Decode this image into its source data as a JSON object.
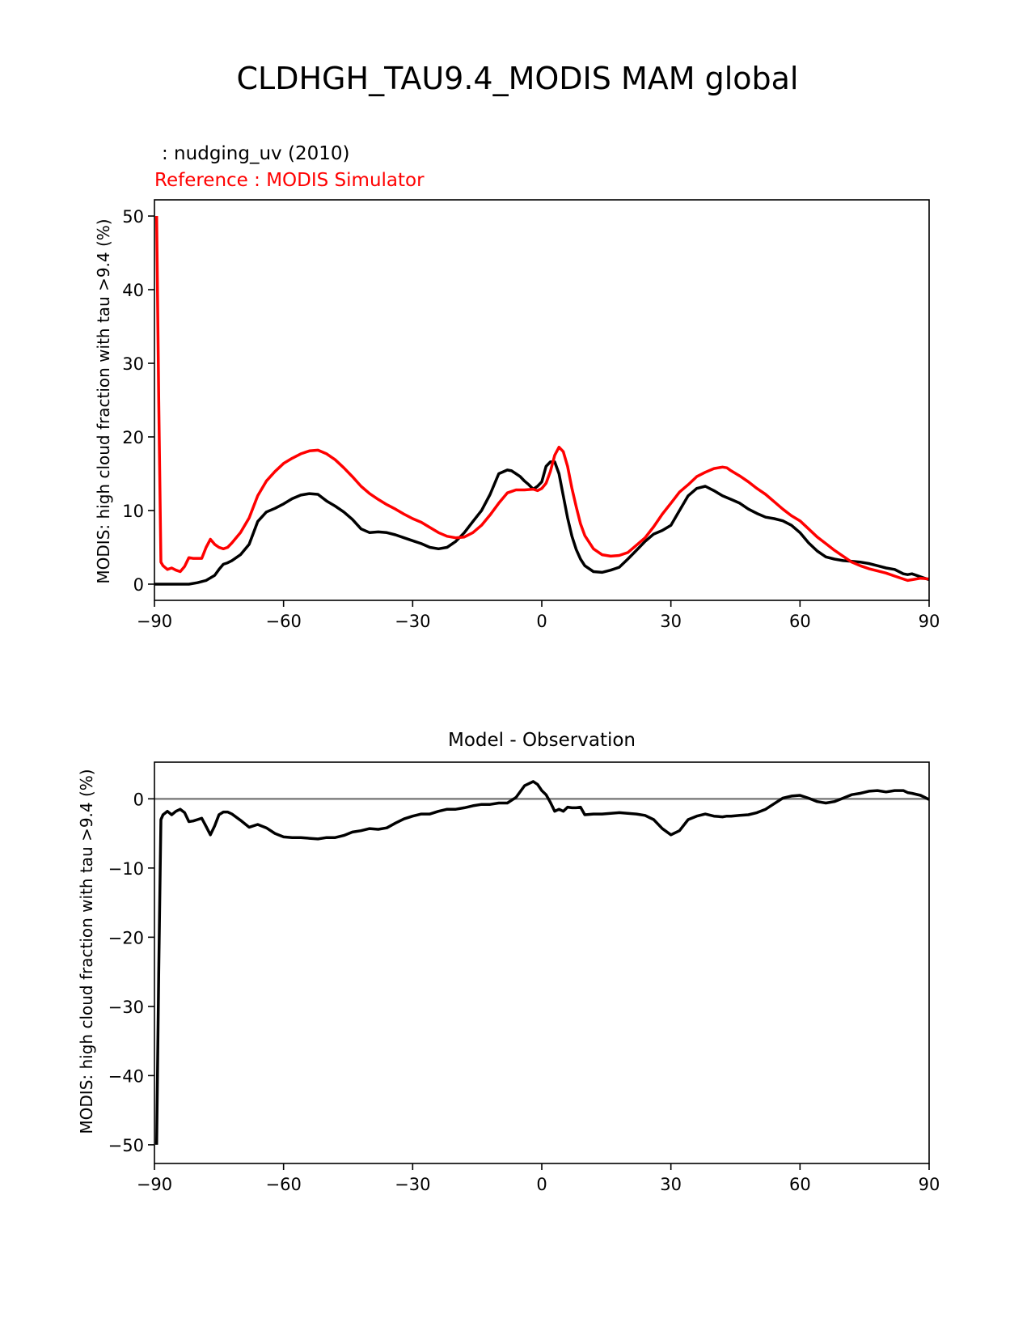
{
  "figure_title": "CLDHGH_TAU9.4_MODIS MAM global",
  "colors": {
    "model": "#000000",
    "reference": "#ff0000",
    "zero_line": "#808080"
  },
  "chart_data": [
    {
      "type": "line",
      "test_label": " : nudging_uv (2010)",
      "ref_label": "Reference : MODIS Simulator",
      "title": "",
      "xlabel": "",
      "ylabel": "MODIS: high cloud fraction with tau >9.4 (%)",
      "xlim": [
        -90,
        90
      ],
      "ylim": [
        -2.2,
        52.2
      ],
      "xticks": [
        -90,
        -60,
        -30,
        0,
        30,
        60,
        90
      ],
      "xtick_labels": [
        "−90",
        "−60",
        "−30",
        "0",
        "30",
        "60",
        "90"
      ],
      "yticks": [
        0,
        10,
        20,
        30,
        40,
        50
      ],
      "ytick_labels": [
        "0",
        "10",
        "20",
        "30",
        "40",
        "50"
      ],
      "series": [
        {
          "name": "nudging_uv (2010)",
          "color": "#000000",
          "x": [
            -90,
            -87,
            -84,
            -82,
            -80,
            -78,
            -76,
            -75,
            -74,
            -73,
            -72,
            -70,
            -68,
            -66,
            -64,
            -62,
            -60,
            -58,
            -56,
            -54,
            -52,
            -50,
            -48,
            -46,
            -44,
            -42,
            -40,
            -38,
            -36,
            -34,
            -32,
            -30,
            -28,
            -26,
            -24,
            -22,
            -20,
            -18,
            -16,
            -14,
            -12,
            -10,
            -8,
            -7,
            -6,
            -5,
            -4,
            -3,
            -2,
            -1,
            0,
            1,
            2,
            3,
            4,
            5,
            6,
            7,
            8,
            9,
            10,
            12,
            14,
            16,
            18,
            20,
            22,
            24,
            26,
            28,
            30,
            32,
            34,
            36,
            38,
            40,
            42,
            44,
            46,
            48,
            50,
            52,
            54,
            56,
            58,
            60,
            62,
            64,
            66,
            68,
            70,
            72,
            74,
            76,
            78,
            80,
            82,
            84,
            85,
            86,
            88,
            90
          ],
          "values": [
            0,
            0,
            0,
            0,
            0.2,
            0.5,
            1.2,
            2,
            2.7,
            2.9,
            3.2,
            4,
            5.4,
            8.5,
            9.8,
            10.3,
            10.9,
            11.6,
            12.1,
            12.3,
            12.2,
            11.3,
            10.6,
            9.8,
            8.8,
            7.5,
            7,
            7.1,
            7,
            6.7,
            6.3,
            5.9,
            5.5,
            5,
            4.8,
            5,
            5.8,
            7,
            8.5,
            10,
            12.2,
            15,
            15.5,
            15.4,
            15,
            14.6,
            14,
            13.5,
            12.9,
            13.3,
            13.9,
            16,
            16.6,
            16.6,
            15,
            12,
            9,
            6.5,
            4.7,
            3.4,
            2.5,
            1.7,
            1.6,
            1.9,
            2.3,
            3.4,
            4.6,
            5.8,
            6.8,
            7.3,
            8,
            10,
            12,
            13,
            13.3,
            12.7,
            12,
            11.5,
            11,
            10.2,
            9.6,
            9.1,
            8.9,
            8.6,
            8,
            7,
            5.6,
            4.5,
            3.7,
            3.4,
            3.2,
            3.1,
            3,
            2.8,
            2.5,
            2.2,
            2,
            1.4,
            1.3,
            1.4,
            1,
            0.6
          ]
        },
        {
          "name": "MODIS Simulator",
          "color": "#ff0000",
          "x": [
            -89.5,
            -89,
            -88.5,
            -88,
            -87,
            -86,
            -85,
            -84,
            -83,
            -82,
            -81,
            -80,
            -79,
            -78,
            -77,
            -76,
            -75,
            -74,
            -73,
            -72,
            -70,
            -68,
            -66,
            -64,
            -62,
            -60,
            -58,
            -56,
            -54,
            -52,
            -50,
            -48,
            -46,
            -44,
            -42,
            -40,
            -38,
            -36,
            -34,
            -32,
            -30,
            -28,
            -26,
            -24,
            -22,
            -20,
            -18,
            -16,
            -14,
            -12,
            -10,
            -8,
            -6,
            -4,
            -2,
            -1,
            0,
            1,
            2,
            3,
            4,
            5,
            6,
            7,
            8,
            9,
            10,
            12,
            14,
            16,
            18,
            20,
            22,
            24,
            26,
            28,
            30,
            32,
            34,
            36,
            38,
            40,
            42,
            43,
            44,
            46,
            48,
            50,
            52,
            54,
            56,
            58,
            60,
            62,
            64,
            66,
            68,
            70,
            72,
            74,
            76,
            78,
            80,
            82,
            84,
            85,
            86,
            88,
            90
          ],
          "values": [
            50,
            25,
            3,
            2.5,
            2,
            2.2,
            1.9,
            1.7,
            2.4,
            3.6,
            3.5,
            3.5,
            3.5,
            5,
            6.1,
            5.4,
            5,
            4.8,
            5,
            5.6,
            7,
            9,
            12,
            14,
            15.3,
            16.4,
            17.1,
            17.7,
            18.1,
            18.2,
            17.7,
            16.9,
            15.8,
            14.6,
            13.3,
            12.3,
            11.5,
            10.8,
            10.2,
            9.5,
            8.9,
            8.4,
            7.7,
            7,
            6.5,
            6.3,
            6.4,
            7,
            8,
            9.4,
            11,
            12.4,
            12.8,
            12.8,
            12.9,
            12.7,
            13,
            13.7,
            15.3,
            17.5,
            18.6,
            18,
            16,
            13,
            10.5,
            8.2,
            6.6,
            4.8,
            4,
            3.8,
            3.9,
            4.3,
            5.3,
            6.3,
            7.8,
            9.5,
            11,
            12.5,
            13.5,
            14.6,
            15.2,
            15.7,
            15.9,
            15.8,
            15.4,
            14.7,
            13.9,
            13,
            12.2,
            11.2,
            10.2,
            9.3,
            8.6,
            7.5,
            6.4,
            5.5,
            4.6,
            3.8,
            3,
            2.5,
            2.1,
            1.8,
            1.5,
            1.1,
            0.7,
            0.5,
            0.6,
            0.8,
            0.7
          ]
        }
      ]
    },
    {
      "type": "line",
      "title": "Model - Observation",
      "xlabel": "",
      "ylabel": "MODIS: high cloud fraction with tau >9.4 (%)",
      "xlim": [
        -90,
        90
      ],
      "ylim": [
        -52.7,
        5.3
      ],
      "xticks": [
        -90,
        -60,
        -30,
        0,
        30,
        60,
        90
      ],
      "xtick_labels": [
        "−90",
        "−60",
        "−30",
        "0",
        "30",
        "60",
        "90"
      ],
      "yticks": [
        0,
        -10,
        -20,
        -30,
        -40,
        -50
      ],
      "ytick_labels": [
        "0",
        "−10",
        "−20",
        "−30",
        "−40",
        "−50"
      ],
      "reference_line": 0,
      "series": [
        {
          "name": "Model - Observation",
          "color": "#000000",
          "x": [
            -89.5,
            -89,
            -88.5,
            -88,
            -87,
            -86,
            -85,
            -84,
            -83,
            -82,
            -81,
            -80,
            -79,
            -78,
            -77,
            -76,
            -75,
            -74,
            -73,
            -72,
            -70,
            -68,
            -66,
            -64,
            -62,
            -60,
            -58,
            -56,
            -54,
            -52,
            -50,
            -48,
            -46,
            -44,
            -42,
            -40,
            -38,
            -36,
            -34,
            -32,
            -30,
            -28,
            -26,
            -24,
            -22,
            -20,
            -18,
            -16,
            -14,
            -12,
            -10,
            -8,
            -6,
            -4,
            -2,
            -1,
            0,
            1,
            2,
            3,
            4,
            5,
            6,
            7,
            8,
            9,
            10,
            12,
            14,
            16,
            18,
            20,
            22,
            24,
            26,
            28,
            30,
            32,
            34,
            36,
            38,
            40,
            42,
            43,
            44,
            46,
            48,
            50,
            52,
            54,
            56,
            58,
            60,
            62,
            64,
            66,
            68,
            70,
            72,
            74,
            76,
            78,
            80,
            82,
            84,
            85,
            86,
            88,
            90
          ],
          "values": [
            -50,
            -25,
            -3,
            -2.3,
            -1.8,
            -2.3,
            -1.8,
            -1.5,
            -2,
            -3.3,
            -3.2,
            -3,
            -2.8,
            -4,
            -5.2,
            -3.9,
            -2.3,
            -1.9,
            -1.9,
            -2.2,
            -3.1,
            -4.1,
            -3.7,
            -4.2,
            -5,
            -5.5,
            -5.6,
            -5.6,
            -5.7,
            -5.8,
            -5.6,
            -5.6,
            -5.3,
            -4.8,
            -4.6,
            -4.3,
            -4.4,
            -4.2,
            -3.5,
            -2.9,
            -2.5,
            -2.2,
            -2.2,
            -1.8,
            -1.5,
            -1.5,
            -1.3,
            -1,
            -0.8,
            -0.8,
            -0.6,
            -0.6,
            0.2,
            1.9,
            2.5,
            2.1,
            1.2,
            0.6,
            -0.5,
            -1.8,
            -1.5,
            -1.8,
            -1.2,
            -1.3,
            -1.3,
            -1.2,
            -2.3,
            -2.2,
            -2.2,
            -2.1,
            -2,
            -2.1,
            -2.2,
            -2.4,
            -3,
            -4.3,
            -5.2,
            -4.6,
            -3,
            -2.5,
            -2.2,
            -2.5,
            -2.6,
            -2.5,
            -2.5,
            -2.4,
            -2.3,
            -2,
            -1.5,
            -0.7,
            0.1,
            0.4,
            0.5,
            0.1,
            -0.4,
            -0.6,
            -0.4,
            0.1,
            0.6,
            0.8,
            1.1,
            1.2,
            1.0,
            1.2,
            1.2,
            0.9,
            0.8,
            0.5,
            -0.1
          ]
        }
      ]
    }
  ]
}
